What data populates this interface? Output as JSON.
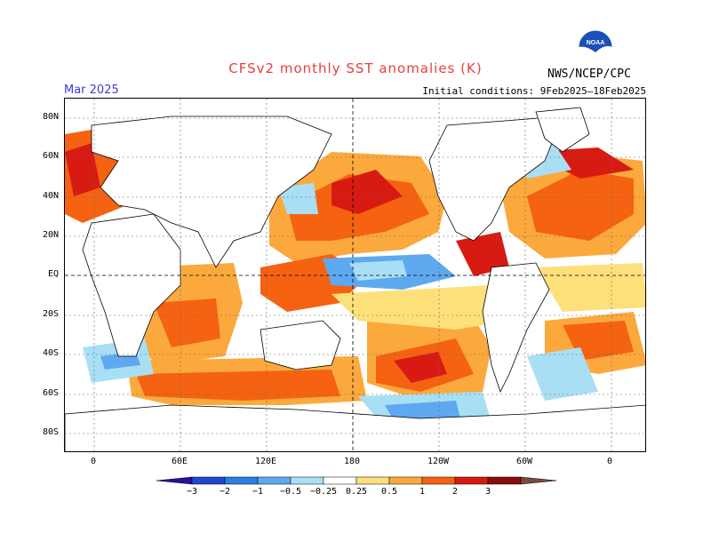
{
  "title": "CFSv2 monthly SST anomalies (K)",
  "month": "Mar 2025",
  "initial_conditions": "Initial conditions: 9Feb2025–18Feb2025",
  "agency": "NWS/NCEP/CPC",
  "logo_text": "NOAA",
  "y_labels": [
    "80N",
    "60N",
    "40N",
    "20N",
    "EQ",
    "20S",
    "40S",
    "60S",
    "80S"
  ],
  "x_labels": [
    "0",
    "60E",
    "120E",
    "180",
    "120W",
    "60W",
    "0"
  ],
  "colorbar": {
    "labels": [
      "−3",
      "−2",
      "−1",
      "−0.5",
      "−0.25",
      "0.25",
      "0.5",
      "1",
      "2",
      "3"
    ],
    "colors": [
      "#2a0fa3",
      "#1f47d0",
      "#2b7ee6",
      "#5ea8f0",
      "#a9dff5",
      "#ffffff",
      "#fde07a",
      "#fba93c",
      "#f56212",
      "#d81b12",
      "#8c0b0b",
      "#7a4a40"
    ]
  },
  "colors": {
    "title": "#e8403a",
    "month": "#3b3bd4"
  }
}
